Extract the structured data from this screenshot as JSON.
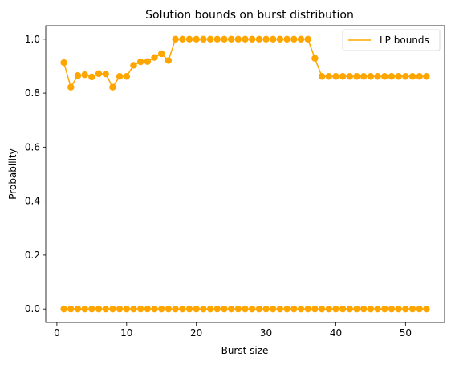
{
  "chart_data": {
    "type": "line",
    "title": "Solution bounds on burst distribution",
    "xlabel": "Burst size",
    "ylabel": "Probability",
    "xlim": [
      -1.6,
      55.6
    ],
    "ylim": [
      -0.05,
      1.05
    ],
    "xticks": [
      0,
      10,
      20,
      30,
      40,
      50
    ],
    "yticks": [
      0.0,
      0.2,
      0.4,
      0.6,
      0.8,
      1.0
    ],
    "xtick_labels": [
      "0",
      "10",
      "20",
      "30",
      "40",
      "50"
    ],
    "ytick_labels": [
      "0.0",
      "0.2",
      "0.4",
      "0.6",
      "0.8",
      "1.0"
    ],
    "grid": false,
    "legend_position": "top-right",
    "color": "#ffa500",
    "series": [
      {
        "name": "LP bounds",
        "role": "upper",
        "x": [
          1,
          2,
          3,
          4,
          5,
          6,
          7,
          8,
          9,
          10,
          11,
          12,
          13,
          14,
          15,
          16,
          17,
          18,
          19,
          20,
          21,
          22,
          23,
          24,
          25,
          26,
          27,
          28,
          29,
          30,
          31,
          32,
          33,
          34,
          35,
          36,
          37,
          38,
          39,
          40,
          41,
          42,
          43,
          44,
          45,
          46,
          47,
          48,
          49,
          50,
          51,
          52,
          53
        ],
        "y": [
          0.913,
          0.822,
          0.865,
          0.868,
          0.86,
          0.872,
          0.871,
          0.822,
          0.862,
          0.862,
          0.903,
          0.916,
          0.917,
          0.932,
          0.946,
          0.921,
          1.0,
          1.0,
          1.0,
          1.0,
          1.0,
          1.0,
          1.0,
          1.0,
          1.0,
          1.0,
          1.0,
          1.0,
          1.0,
          1.0,
          1.0,
          1.0,
          1.0,
          1.0,
          1.0,
          1.0,
          0.929,
          0.862,
          0.862,
          0.862,
          0.862,
          0.862,
          0.862,
          0.862,
          0.862,
          0.862,
          0.862,
          0.862,
          0.862,
          0.862,
          0.862,
          0.862,
          0.862
        ]
      },
      {
        "name": "",
        "role": "lower",
        "x": [
          1,
          2,
          3,
          4,
          5,
          6,
          7,
          8,
          9,
          10,
          11,
          12,
          13,
          14,
          15,
          16,
          17,
          18,
          19,
          20,
          21,
          22,
          23,
          24,
          25,
          26,
          27,
          28,
          29,
          30,
          31,
          32,
          33,
          34,
          35,
          36,
          37,
          38,
          39,
          40,
          41,
          42,
          43,
          44,
          45,
          46,
          47,
          48,
          49,
          50,
          51,
          52,
          53
        ],
        "y": [
          0,
          0,
          0,
          0,
          0,
          0,
          0,
          0,
          0,
          0,
          0,
          0,
          0,
          0,
          0,
          0,
          0,
          0,
          0,
          0,
          0,
          0,
          0,
          0,
          0,
          0,
          0,
          0,
          0,
          0,
          0,
          0,
          0,
          0,
          0,
          0,
          0,
          0,
          0,
          0,
          0,
          0,
          0,
          0,
          0,
          0,
          0,
          0,
          0,
          0,
          0,
          0,
          0
        ]
      }
    ],
    "legend": [
      "LP bounds"
    ]
  }
}
